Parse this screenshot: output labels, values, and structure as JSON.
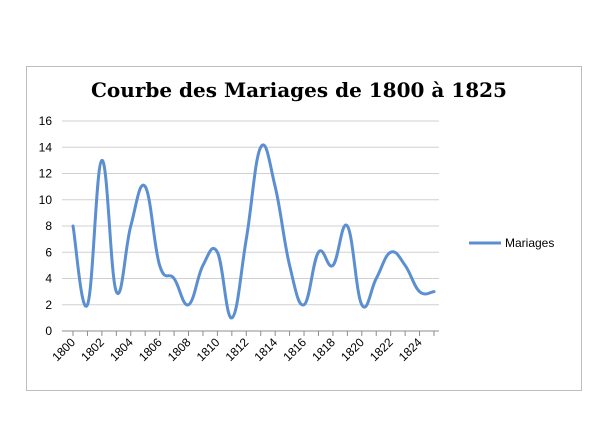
{
  "chart_data": {
    "type": "line",
    "title": "Courbe des Mariages de 1800 à 1825",
    "xlabel": "",
    "ylabel": "",
    "x": [
      1800,
      1801,
      1802,
      1803,
      1804,
      1805,
      1806,
      1807,
      1808,
      1809,
      1810,
      1811,
      1812,
      1813,
      1814,
      1815,
      1816,
      1817,
      1818,
      1819,
      1820,
      1821,
      1822,
      1823,
      1824,
      1825
    ],
    "x_tick_labels": [
      "1800",
      "1802",
      "1804",
      "1806",
      "1808",
      "1810",
      "1812",
      "1814",
      "1816",
      "1818",
      "1820",
      "1822",
      "1824"
    ],
    "ylim": [
      0,
      16
    ],
    "y_ticks": [
      0,
      2,
      4,
      6,
      8,
      10,
      12,
      14,
      16
    ],
    "grid": true,
    "legend_position": "right",
    "series": [
      {
        "name": "Mariages",
        "color": "#5b8fd1",
        "values": [
          8,
          2,
          13,
          3,
          8,
          11,
          5,
          4,
          2,
          5,
          6,
          1,
          7,
          14,
          11,
          5,
          2,
          6,
          5,
          8,
          2,
          4,
          6,
          5,
          3,
          3
        ]
      }
    ]
  }
}
